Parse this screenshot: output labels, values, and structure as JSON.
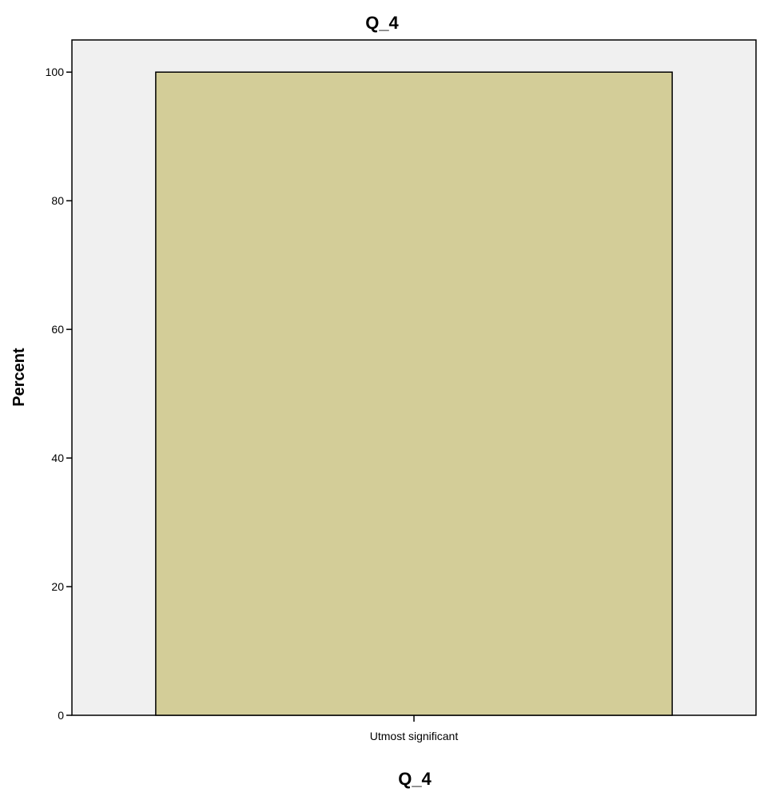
{
  "chart_data": {
    "type": "bar",
    "title": "Q_4",
    "xlabel": "Q_4",
    "ylabel": "Percent",
    "categories": [
      "Utmost significant"
    ],
    "values": [
      100
    ],
    "ylim": [
      0,
      105
    ],
    "yticks": [
      0,
      20,
      40,
      60,
      80,
      100
    ],
    "grid": false,
    "legend": "none",
    "colors": {
      "bar_fill": "#d3cd98",
      "bar_stroke": "#000000",
      "plot_background": "#f0f0f0",
      "axis": "#000000"
    }
  }
}
